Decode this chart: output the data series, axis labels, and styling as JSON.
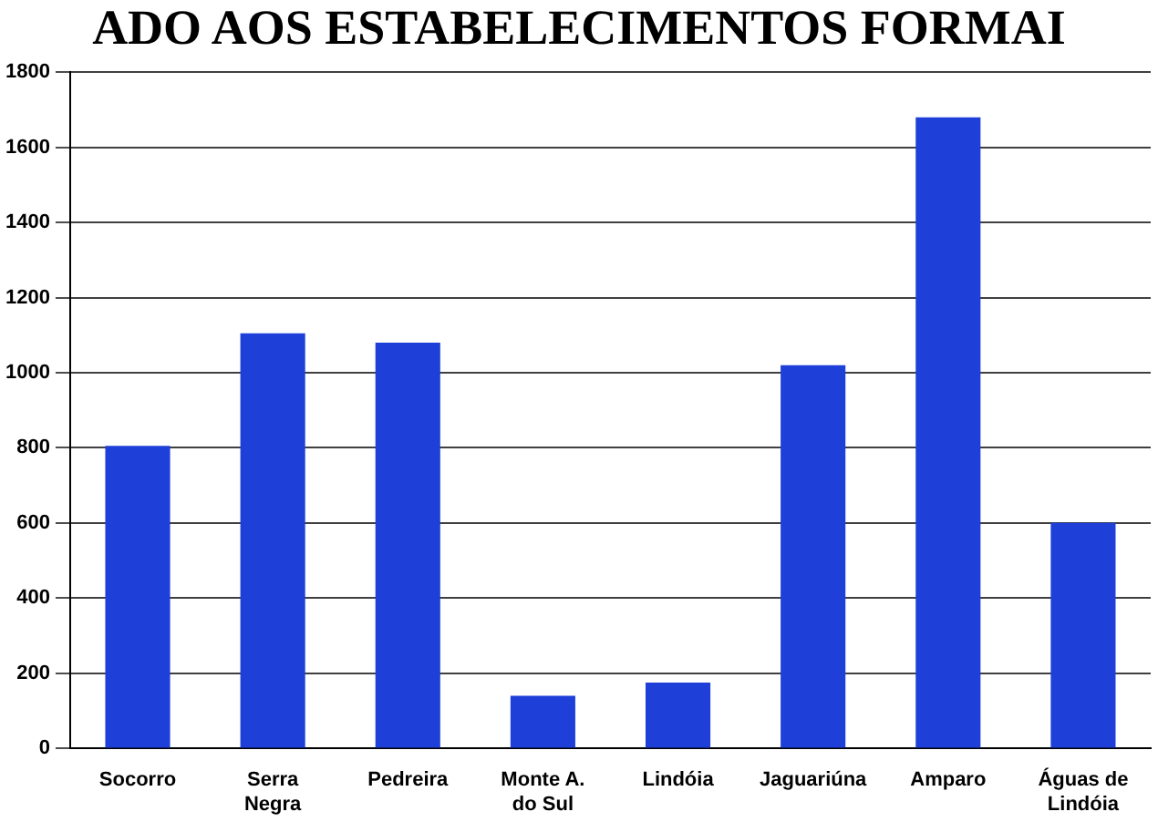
{
  "chart_data": {
    "type": "bar",
    "title": "ADO AOS ESTABELECIMENTOS FORMAI",
    "categories": [
      "Socorro",
      "Serra Negra",
      "Pedreira",
      "Monte A. do Sul",
      "Lindóia",
      "Jaguariúna",
      "Amparo",
      "Águas de Lindóia"
    ],
    "values": [
      805,
      1105,
      1080,
      140,
      175,
      1020,
      1680,
      600
    ],
    "color": "#1e40d8",
    "ylim": [
      0,
      1800
    ],
    "yticks": [
      0,
      200,
      400,
      600,
      800,
      1000,
      1200,
      1400,
      1600,
      1800
    ],
    "grid": "y",
    "legend": false
  }
}
